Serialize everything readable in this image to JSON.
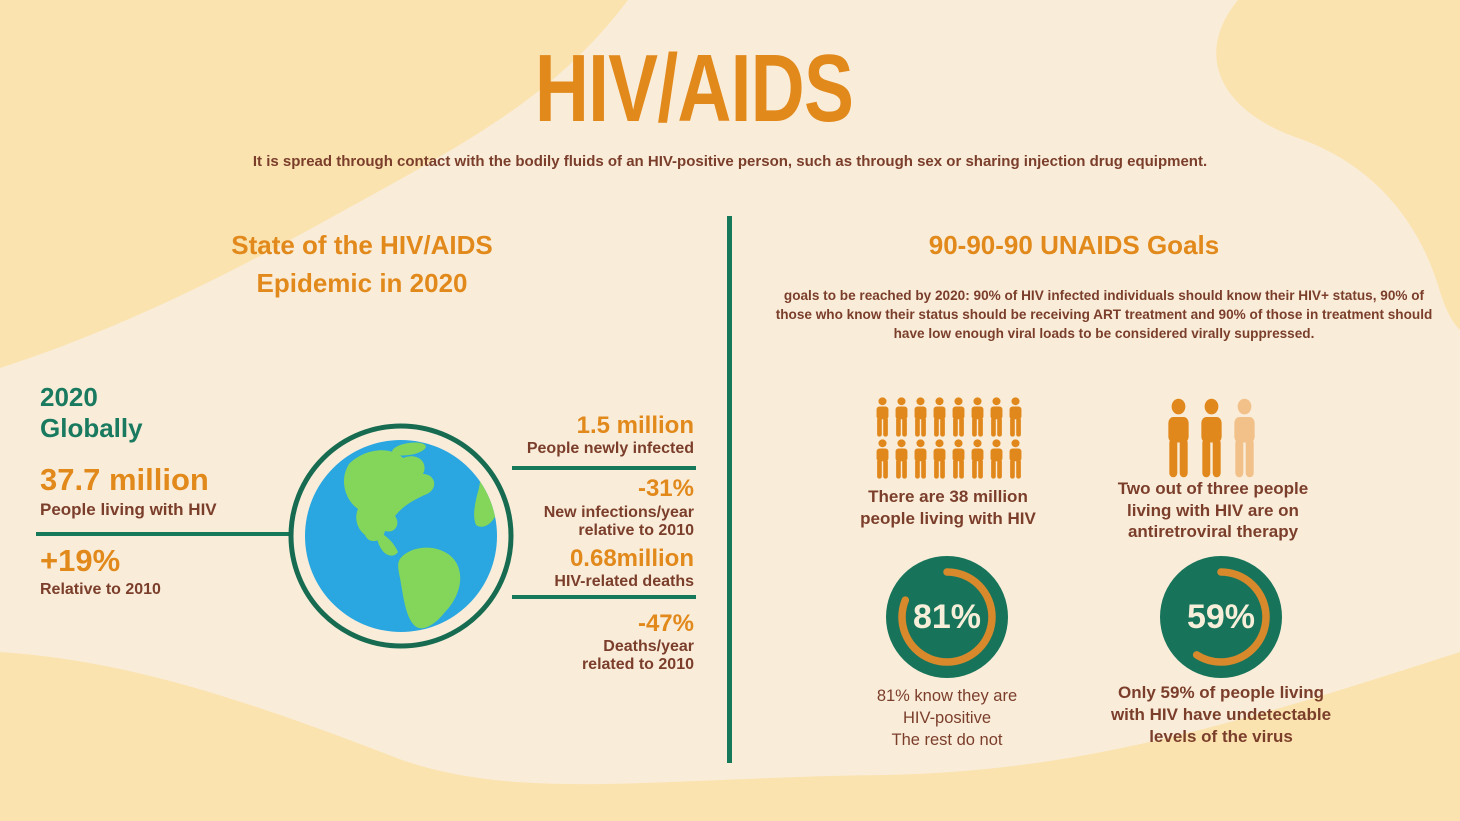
{
  "page": {
    "title": "HIV/AIDS",
    "subtitle": "It is spread through contact with the bodily fluids of an HIV-positive person, such as through sex or sharing injection drug equipment."
  },
  "left_section": {
    "title_line1": "State of the HIV/AIDS",
    "title_line2": "Epidemic in 2020",
    "year_label": "2020",
    "scope_label": "Globally",
    "stats": {
      "living": {
        "value": "37.7 million",
        "label": "People living with HIV"
      },
      "change_living": {
        "value": "+19%",
        "label": "Relative to 2010"
      },
      "newly_infected": {
        "value": "1.5 million",
        "label": "People newly infected"
      },
      "infections_change": {
        "value": "-31%",
        "label_line1": "New infections/year",
        "label_line2": "relative to 2010"
      },
      "deaths": {
        "value": "0.68million",
        "label": "HIV-related deaths"
      },
      "deaths_change": {
        "value": "-47%",
        "label_line1": "Deaths/year",
        "label_line2": "related to 2010"
      }
    }
  },
  "right_section": {
    "title": "90-90-90 UNAIDS Goals",
    "description": "goals to be reached by 2020: 90% of HIV infected individuals should know their HIV+ status, 90% of those who know their status should be receiving ART treatment and 90% of those in treatment should have low enough viral loads to be considered virally suppressed.",
    "groups": {
      "population": {
        "icon_count": 16,
        "caption_lines": [
          "There are 38 million",
          "people living with HIV"
        ]
      },
      "therapy": {
        "icon_count": 3,
        "highlighted": 2,
        "caption_lines": [
          "Two out of three people",
          "living with HIV are on",
          "antiretroviral therapy"
        ]
      }
    },
    "donuts": [
      {
        "percent": 81,
        "value_label": "81%",
        "caption_lines": [
          "81% know they are",
          "HIV-positive",
          "The rest do not"
        ]
      },
      {
        "percent": 59,
        "value_label": "59%",
        "caption_lines": [
          "Only 59% of people living",
          "with HIV have undetectable",
          "levels of the virus"
        ]
      }
    ]
  },
  "icons": {
    "person": "person-pictogram-icon",
    "globe": "globe-earth-icon"
  },
  "colors": {
    "background": "#f9edda",
    "blob": "#fbe3b0",
    "orange": "#e2891c",
    "brown": "#7b3e2b",
    "teal": "#1a7a5f",
    "line_green": "#15795a",
    "ring_green": "#166b51",
    "globe_blue": "#2aa6e0",
    "globe_green": "#84d65a",
    "person_orange": "#e1881c",
    "person_light": "#f2c189",
    "donut_green": "#17745a",
    "donut_arc": "#d8892b",
    "donut_text": "#f6eed9"
  }
}
